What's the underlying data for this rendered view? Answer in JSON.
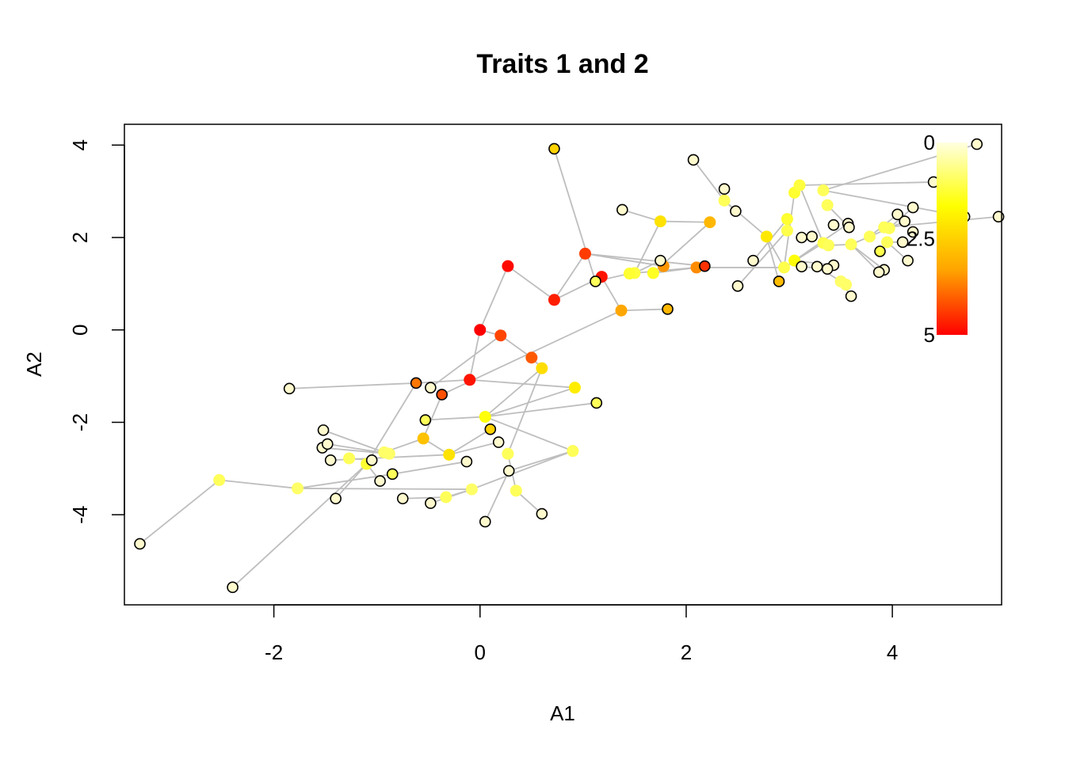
{
  "chart_data": {
    "type": "scatter",
    "title": "Traits 1 and 2",
    "xlabel": "A1",
    "ylabel": "A2",
    "xlim": [
      -3.45,
      5.06
    ],
    "ylim": [
      -5.95,
      4.45
    ],
    "x_ticks": [
      -2,
      0,
      2,
      4
    ],
    "x_tick_labels": [
      "-2",
      "0",
      "2",
      "4"
    ],
    "y_ticks": [
      -4,
      -2,
      0,
      2,
      4
    ],
    "y_tick_labels": [
      "-4",
      "-2",
      "0",
      "2",
      "4"
    ],
    "grid": false,
    "color_legend": {
      "placement": "top-right",
      "labels": [
        "0",
        "2.5",
        "5"
      ],
      "values": [
        0,
        2.5,
        5
      ],
      "colors": [
        "#FFFFE0",
        "#FFFF00",
        "#FFA500",
        "#FF0000"
      ]
    },
    "tip_points": [
      [
        4.82,
        4.02
      ],
      [
        4.4,
        3.2
      ],
      [
        4.7,
        2.45
      ],
      [
        5.03,
        2.45
      ],
      [
        4.57,
        1.42
      ],
      [
        4.15,
        1.5
      ],
      [
        4.2,
        2.12
      ],
      [
        4.1,
        1.9
      ],
      [
        4.05,
        2.5
      ],
      [
        4.12,
        2.35
      ],
      [
        4.2,
        2.65
      ],
      [
        3.92,
        1.3
      ],
      [
        3.87,
        1.25
      ],
      [
        3.6,
        0.73
      ],
      [
        3.57,
        2.3
      ],
      [
        3.58,
        2.22
      ],
      [
        3.43,
        2.27
      ],
      [
        3.43,
        1.4
      ],
      [
        3.37,
        1.32
      ],
      [
        3.27,
        1.37
      ],
      [
        3.12,
        1.37
      ],
      [
        3.12,
        2.0
      ],
      [
        3.22,
        2.02
      ],
      [
        2.65,
        1.5
      ],
      [
        2.5,
        0.95
      ],
      [
        2.37,
        3.05
      ],
      [
        2.48,
        2.57
      ],
      [
        2.07,
        3.68
      ],
      [
        1.75,
        1.5
      ],
      [
        1.38,
        2.6
      ],
      [
        -1.85,
        -1.27
      ],
      [
        -1.52,
        -2.17
      ],
      [
        -1.53,
        -2.55
      ],
      [
        -1.48,
        -2.47
      ],
      [
        -1.45,
        -2.82
      ],
      [
        -1.05,
        -2.82
      ],
      [
        -0.97,
        -3.27
      ],
      [
        -1.4,
        -3.65
      ],
      [
        -0.75,
        -3.65
      ],
      [
        -0.48,
        -3.75
      ],
      [
        -0.13,
        -2.85
      ],
      [
        0.18,
        -2.43
      ],
      [
        0.28,
        -3.05
      ],
      [
        0.05,
        -4.15
      ],
      [
        0.6,
        -3.98
      ],
      [
        -3.3,
        -4.63
      ],
      [
        -2.4,
        -5.57
      ],
      [
        -0.48,
        -1.25
      ]
    ],
    "tip_colors": "#FFFACD",
    "colored_points": [
      {
        "x": 0.72,
        "y": 3.92,
        "value": 2.5
      },
      {
        "x": 1.12,
        "y": 1.05,
        "value": 1.0
      },
      {
        "x": 2.18,
        "y": 1.38,
        "value": 4.5
      },
      {
        "x": 1.82,
        "y": 0.45,
        "value": 3.0
      },
      {
        "x": 2.9,
        "y": 1.05,
        "value": 2.9
      },
      {
        "x": 1.13,
        "y": -1.58,
        "value": 1.0
      },
      {
        "x": -0.62,
        "y": -1.15,
        "value": 3.8
      },
      {
        "x": -0.37,
        "y": -1.4,
        "value": 4.2
      },
      {
        "x": -0.53,
        "y": -1.95,
        "value": 1.0
      },
      {
        "x": 0.1,
        "y": -2.15,
        "value": 2.5
      },
      {
        "x": -0.85,
        "y": -3.12,
        "value": 1.0
      },
      {
        "x": 3.88,
        "y": 1.7,
        "value": 1.1
      }
    ],
    "internal_nodes": [
      {
        "x": 0.0,
        "y": 0.0,
        "value": 5.0
      },
      {
        "x": 0.27,
        "y": 1.38,
        "value": 4.9
      },
      {
        "x": 0.72,
        "y": 0.65,
        "value": 4.7
      },
      {
        "x": 1.02,
        "y": 1.65,
        "value": 4.4
      },
      {
        "x": 1.18,
        "y": 1.15,
        "value": 4.8
      },
      {
        "x": 0.2,
        "y": -0.12,
        "value": 4.3
      },
      {
        "x": -0.1,
        "y": -1.08,
        "value": 4.8
      },
      {
        "x": 0.5,
        "y": -0.6,
        "value": 4.1
      },
      {
        "x": 0.6,
        "y": -0.83,
        "value": 2.3
      },
      {
        "x": 0.92,
        "y": -1.25,
        "value": 2.0
      },
      {
        "x": 1.37,
        "y": 0.42,
        "value": 3.3
      },
      {
        "x": 1.78,
        "y": 1.38,
        "value": 3.5
      },
      {
        "x": 2.1,
        "y": 1.35,
        "value": 3.6
      },
      {
        "x": 2.23,
        "y": 2.33,
        "value": 3.0
      },
      {
        "x": 1.75,
        "y": 2.35,
        "value": 2.2
      },
      {
        "x": 1.68,
        "y": 1.23,
        "value": 1.4
      },
      {
        "x": 1.5,
        "y": 1.23,
        "value": 1.2
      },
      {
        "x": 1.45,
        "y": 1.22,
        "value": 1.3
      },
      {
        "x": 2.37,
        "y": 2.8,
        "value": 1.0
      },
      {
        "x": 2.78,
        "y": 2.02,
        "value": 2.1
      },
      {
        "x": 2.95,
        "y": 1.35,
        "value": 1.1
      },
      {
        "x": 2.98,
        "y": 2.15,
        "value": 1.1
      },
      {
        "x": 2.98,
        "y": 2.4,
        "value": 1.3
      },
      {
        "x": 3.05,
        "y": 1.5,
        "value": 1.6
      },
      {
        "x": 3.05,
        "y": 2.97,
        "value": 1.3
      },
      {
        "x": 3.1,
        "y": 3.13,
        "value": 1.2
      },
      {
        "x": 3.33,
        "y": 3.02,
        "value": 1.0
      },
      {
        "x": 3.37,
        "y": 2.7,
        "value": 1.0
      },
      {
        "x": 3.33,
        "y": 1.88,
        "value": 1.1
      },
      {
        "x": 3.38,
        "y": 1.83,
        "value": 1.0
      },
      {
        "x": 3.5,
        "y": 1.05,
        "value": 0.9
      },
      {
        "x": 3.55,
        "y": 0.98,
        "value": 0.9
      },
      {
        "x": 3.6,
        "y": 1.85,
        "value": 1.0
      },
      {
        "x": 3.78,
        "y": 2.02,
        "value": 1.0
      },
      {
        "x": 3.95,
        "y": 1.9,
        "value": 1.0
      },
      {
        "x": 3.92,
        "y": 2.22,
        "value": 1.0
      },
      {
        "x": 3.97,
        "y": 2.2,
        "value": 1.0
      },
      {
        "x": 4.62,
        "y": 1.88,
        "value": 0.9
      },
      {
        "x": -0.55,
        "y": -2.35,
        "value": 2.8
      },
      {
        "x": 0.05,
        "y": -1.88,
        "value": 1.6
      },
      {
        "x": 0.27,
        "y": -2.68,
        "value": 1.0
      },
      {
        "x": -0.3,
        "y": -2.7,
        "value": 2.2
      },
      {
        "x": -0.08,
        "y": -3.45,
        "value": 0.9
      },
      {
        "x": -0.33,
        "y": -3.62,
        "value": 1.0
      },
      {
        "x": 0.35,
        "y": -3.48,
        "value": 1.0
      },
      {
        "x": 0.9,
        "y": -2.62,
        "value": 1.0
      },
      {
        "x": -0.93,
        "y": -2.65,
        "value": 0.9
      },
      {
        "x": -0.88,
        "y": -2.68,
        "value": 0.9
      },
      {
        "x": -1.27,
        "y": -2.78,
        "value": 1.0
      },
      {
        "x": -1.1,
        "y": -2.9,
        "value": 1.3
      },
      {
        "x": -1.77,
        "y": -3.43,
        "value": 0.9
      },
      {
        "x": -2.53,
        "y": -3.25,
        "value": 1.0
      }
    ],
    "edges": [
      [
        0.0,
        0.0,
        0.27,
        1.38
      ],
      [
        0.0,
        0.0,
        0.2,
        -0.12
      ],
      [
        0.0,
        0.0,
        -0.1,
        -1.08
      ],
      [
        0.27,
        1.38,
        0.72,
        0.65
      ],
      [
        0.72,
        0.65,
        1.02,
        1.65
      ],
      [
        0.72,
        0.65,
        1.18,
        1.15
      ],
      [
        0.72,
        3.92,
        1.12,
        1.05
      ],
      [
        1.02,
        1.65,
        1.78,
        1.38
      ],
      [
        1.02,
        1.65,
        2.18,
        1.38
      ],
      [
        1.18,
        1.15,
        1.37,
        0.42
      ],
      [
        1.37,
        0.42,
        1.82,
        0.45
      ],
      [
        1.45,
        1.22,
        2.1,
        1.35
      ],
      [
        1.5,
        1.23,
        1.75,
        2.35
      ],
      [
        1.68,
        1.23,
        2.23,
        2.33
      ],
      [
        1.75,
        2.35,
        2.23,
        2.33
      ],
      [
        1.38,
        2.6,
        1.75,
        2.35
      ],
      [
        1.75,
        1.5,
        1.78,
        1.38
      ],
      [
        2.07,
        3.68,
        2.37,
        2.8
      ],
      [
        2.37,
        3.05,
        2.37,
        2.8
      ],
      [
        2.37,
        2.8,
        2.48,
        2.57
      ],
      [
        2.37,
        2.8,
        2.78,
        2.02
      ],
      [
        2.78,
        2.02,
        2.9,
        1.05
      ],
      [
        2.78,
        2.02,
        2.95,
        1.35
      ],
      [
        2.5,
        0.95,
        2.98,
        2.15
      ],
      [
        2.65,
        1.5,
        2.98,
        2.4
      ],
      [
        2.95,
        1.35,
        3.05,
        2.97
      ],
      [
        2.95,
        1.35,
        3.33,
        1.88
      ],
      [
        3.05,
        2.97,
        3.1,
        3.13
      ],
      [
        3.1,
        3.13,
        3.33,
        1.88
      ],
      [
        3.05,
        1.5,
        3.43,
        1.4
      ],
      [
        3.05,
        1.5,
        3.57,
        2.3
      ],
      [
        3.1,
        3.13,
        4.4,
        3.2
      ],
      [
        3.33,
        3.02,
        4.82,
        4.02
      ],
      [
        3.33,
        3.02,
        4.7,
        2.45
      ],
      [
        3.37,
        2.7,
        3.58,
        2.22
      ],
      [
        3.38,
        1.83,
        3.6,
        1.85
      ],
      [
        3.6,
        1.85,
        3.78,
        2.02
      ],
      [
        3.78,
        2.02,
        4.05,
        2.5
      ],
      [
        3.78,
        2.02,
        4.12,
        2.35
      ],
      [
        3.92,
        2.22,
        5.03,
        2.45
      ],
      [
        3.95,
        1.9,
        4.15,
        1.5
      ],
      [
        3.97,
        2.2,
        4.2,
        2.65
      ],
      [
        3.95,
        1.9,
        4.1,
        1.9
      ],
      [
        4.62,
        1.88,
        4.57,
        1.42
      ],
      [
        3.6,
        1.85,
        3.87,
        1.25
      ],
      [
        3.6,
        1.85,
        3.92,
        1.3
      ],
      [
        3.5,
        1.05,
        3.6,
        0.73
      ],
      [
        3.55,
        0.98,
        3.27,
        1.37
      ],
      [
        3.12,
        2.0,
        3.22,
        2.02
      ],
      [
        3.12,
        1.37,
        3.37,
        1.32
      ],
      [
        2.1,
        1.35,
        2.98,
        1.35
      ],
      [
        1.12,
        1.05,
        1.45,
        1.22
      ],
      [
        1.68,
        1.23,
        2.1,
        1.35
      ],
      [
        1.5,
        1.23,
        1.75,
        1.5
      ],
      [
        0.2,
        -0.12,
        0.5,
        -0.6
      ],
      [
        0.5,
        -0.6,
        0.6,
        -0.83
      ],
      [
        0.6,
        -0.83,
        0.05,
        -1.88
      ],
      [
        0.6,
        -0.83,
        0.27,
        -2.68
      ],
      [
        -0.1,
        -1.08,
        0.92,
        -1.25
      ],
      [
        -0.1,
        -1.08,
        -0.62,
        -1.15
      ],
      [
        0.2,
        -0.12,
        -0.48,
        -1.25
      ],
      [
        1.37,
        0.42,
        -0.37,
        -1.4
      ],
      [
        0.05,
        -1.88,
        1.13,
        -1.58
      ],
      [
        0.05,
        -1.88,
        0.92,
        -1.25
      ],
      [
        0.05,
        -1.88,
        0.9,
        -2.62
      ],
      [
        0.05,
        -1.88,
        -0.53,
        -1.95
      ],
      [
        -0.62,
        -1.15,
        -1.85,
        -1.27
      ],
      [
        -0.62,
        -1.15,
        -1.1,
        -2.9
      ],
      [
        -0.37,
        -1.4,
        -0.55,
        -2.35
      ],
      [
        -0.55,
        -2.35,
        -0.93,
        -2.65
      ],
      [
        -0.55,
        -2.35,
        -0.3,
        -2.7
      ],
      [
        -0.3,
        -2.7,
        0.1,
        -2.15
      ],
      [
        -0.3,
        -2.7,
        0.18,
        -2.43
      ],
      [
        -0.3,
        -2.7,
        -1.45,
        -2.82
      ],
      [
        0.27,
        -2.68,
        0.35,
        -3.48
      ],
      [
        0.35,
        -3.48,
        0.6,
        -3.98
      ],
      [
        0.28,
        -3.05,
        0.05,
        -4.15
      ],
      [
        0.9,
        -2.62,
        0.28,
        -3.05
      ],
      [
        0.9,
        -2.62,
        -0.08,
        -3.45
      ],
      [
        -0.08,
        -3.45,
        -0.48,
        -3.75
      ],
      [
        -0.08,
        -3.45,
        -0.33,
        -3.62
      ],
      [
        -0.33,
        -3.62,
        -0.75,
        -3.65
      ],
      [
        -0.08,
        -3.45,
        -1.77,
        -3.43
      ],
      [
        -0.13,
        -2.85,
        -0.85,
        -3.12
      ],
      [
        -0.93,
        -2.65,
        -1.52,
        -2.17
      ],
      [
        -0.88,
        -2.68,
        -1.53,
        -2.55
      ],
      [
        -0.88,
        -2.68,
        -1.48,
        -2.47
      ],
      [
        -1.27,
        -2.78,
        -1.05,
        -2.82
      ],
      [
        -1.1,
        -2.9,
        -0.97,
        -3.27
      ],
      [
        -1.1,
        -2.9,
        -1.4,
        -3.65
      ],
      [
        -1.1,
        -2.9,
        -2.4,
        -5.57
      ],
      [
        -1.77,
        -3.43,
        -2.53,
        -3.25
      ],
      [
        -2.53,
        -3.25,
        -3.3,
        -4.63
      ],
      [
        -1.77,
        -3.43,
        -0.85,
        -3.12
      ]
    ]
  }
}
